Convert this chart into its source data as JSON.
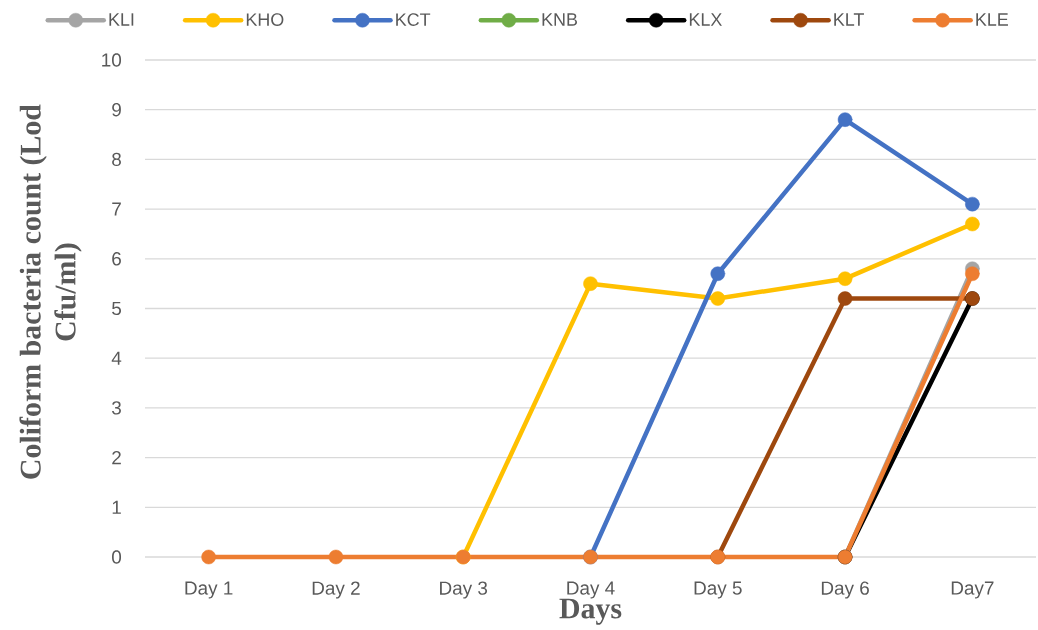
{
  "chart_data": {
    "type": "line",
    "xlabel": "Days",
    "ylabel": "Coliform bacteria count (Lod Cfu/ml)",
    "categories": [
      "Day 1",
      "Day 2",
      "Day 3",
      "Day 4",
      "Day 5",
      "Day 6",
      "Day7"
    ],
    "ylim": [
      0,
      10
    ],
    "yticks": [
      0,
      1,
      2,
      3,
      4,
      5,
      6,
      7,
      8,
      9,
      10
    ],
    "grid": "y",
    "legend": "top",
    "marker": "circle",
    "line_style": "solid",
    "series": [
      {
        "name": "KLI",
        "color": "#a5a5a5",
        "values": [
          null,
          null,
          null,
          null,
          null,
          0,
          5.8
        ]
      },
      {
        "name": "KHO",
        "color": "#ffc000",
        "values": [
          null,
          null,
          0,
          5.5,
          5.2,
          5.6,
          6.7
        ]
      },
      {
        "name": "KCT",
        "color": "#4472c4",
        "values": [
          null,
          null,
          null,
          0,
          5.7,
          8.8,
          7.1
        ]
      },
      {
        "name": "KNB",
        "color": "#70ad47",
        "values": [
          null,
          null,
          null,
          null,
          null,
          null,
          null
        ]
      },
      {
        "name": "KLX",
        "color": "#000000",
        "values": [
          null,
          null,
          null,
          null,
          null,
          0,
          5.2
        ]
      },
      {
        "name": "KLT",
        "color": "#9e480e",
        "values": [
          null,
          null,
          null,
          null,
          0,
          5.2,
          5.2
        ]
      },
      {
        "name": "KLE",
        "color": "#ed7d31",
        "values": [
          0,
          0,
          0,
          0,
          0,
          0,
          5.7
        ]
      }
    ]
  }
}
